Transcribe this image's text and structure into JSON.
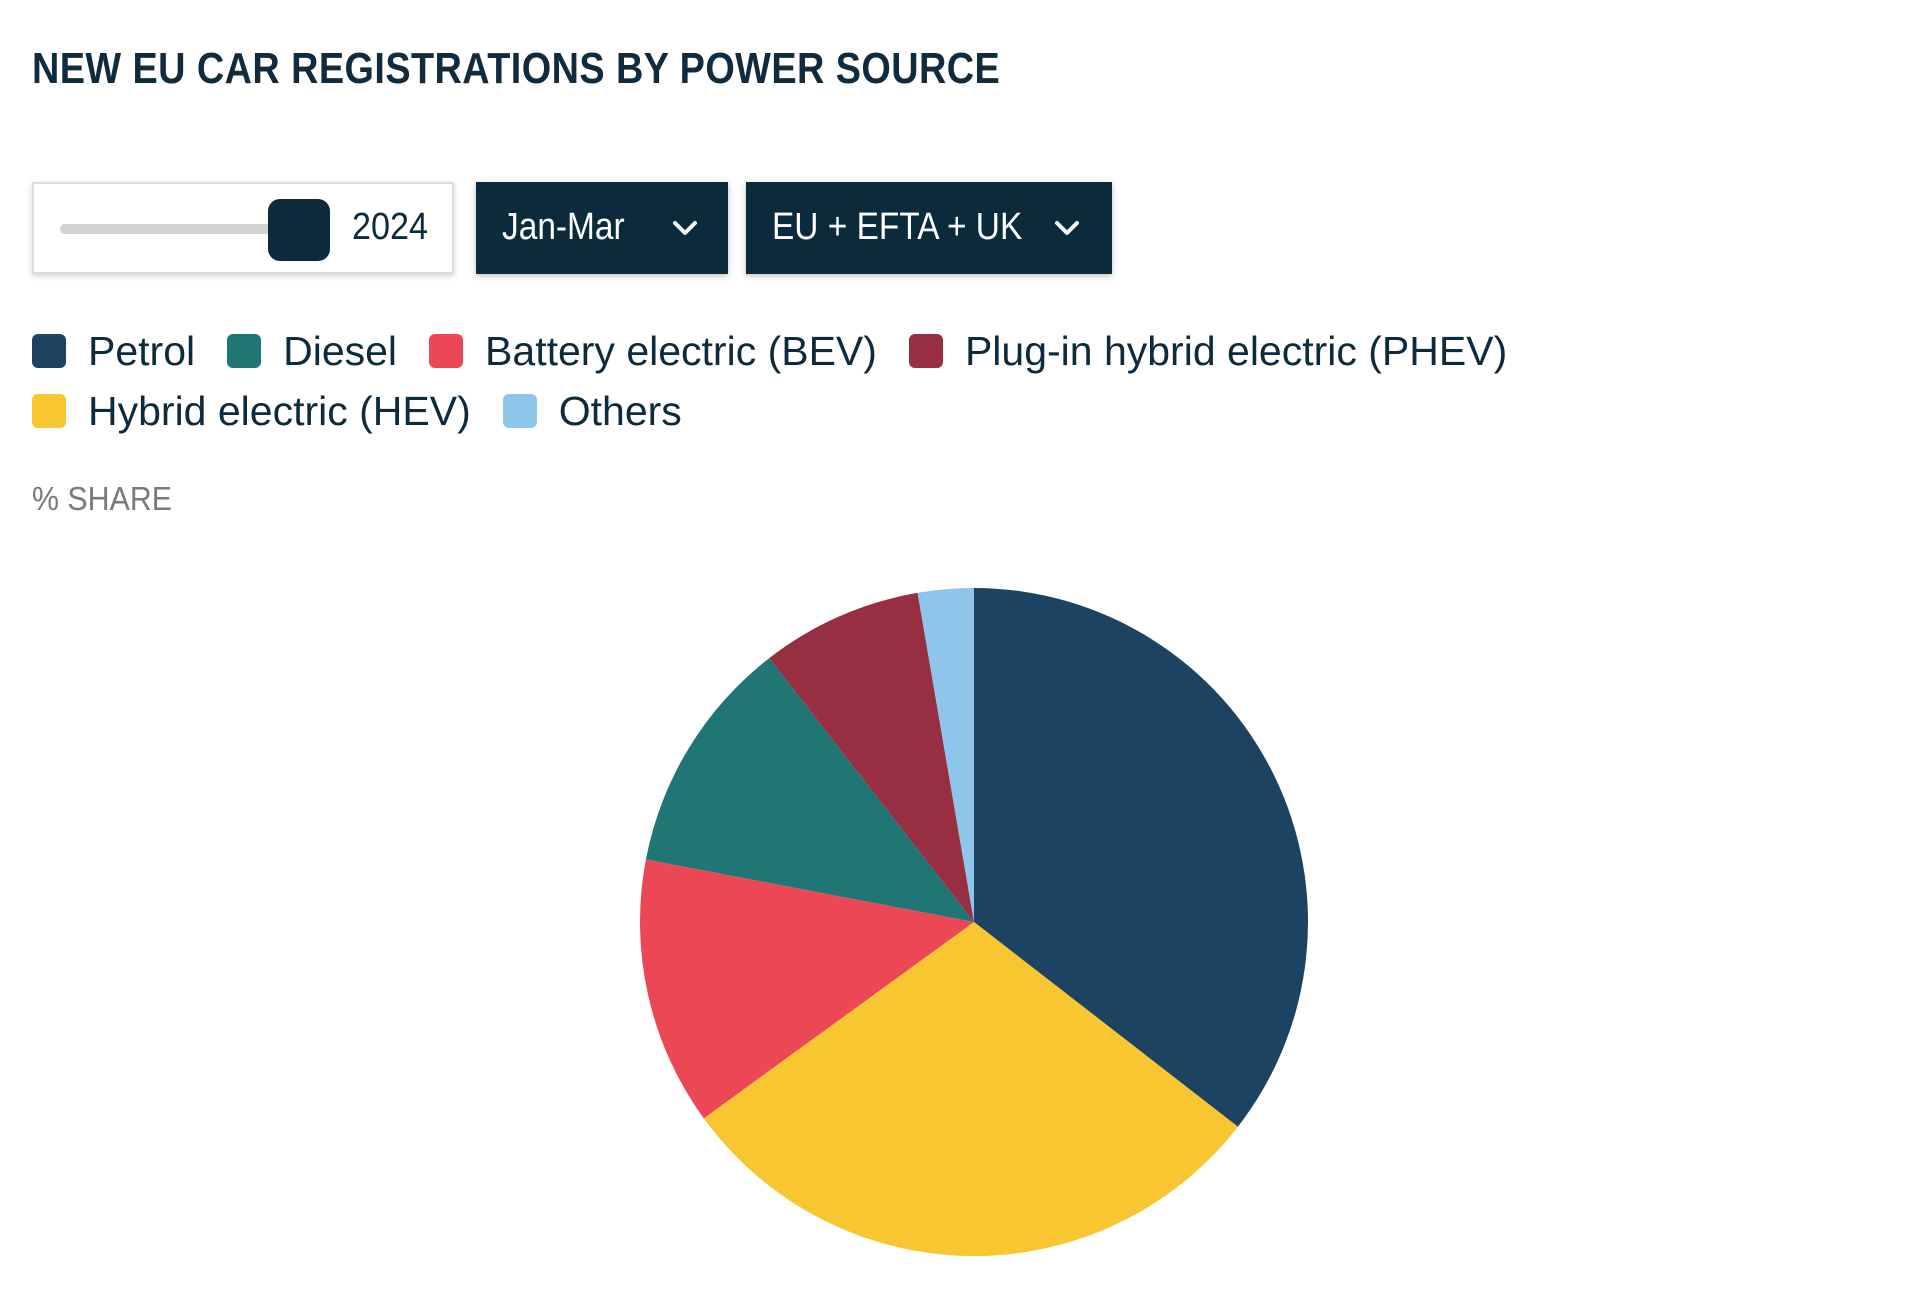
{
  "title": "NEW EU CAR REGISTRATIONS BY POWER SOURCE",
  "controls": {
    "year_slider": {
      "label": "2024"
    },
    "period_dropdown": {
      "label": "Jan-Mar"
    },
    "region_dropdown": {
      "label": "EU + EFTA + UK"
    }
  },
  "axis_unit": "% SHARE",
  "chart_data": {
    "type": "pie",
    "title": "NEW EU CAR REGISTRATIONS BY POWER SOURCE",
    "unit": "% SHARE",
    "start_angle": "12 o'clock",
    "direction": "clockwise",
    "legend_placement": "top",
    "series": [
      {
        "name": "Petrol",
        "value": 35.5,
        "color": "#1d4362"
      },
      {
        "name": "Hybrid electric (HEV)",
        "value": 29.5,
        "color": "#f8c630"
      },
      {
        "name": "Battery electric (BEV)",
        "value": 13.0,
        "color": "#ec4755"
      },
      {
        "name": "Diesel",
        "value": 11.5,
        "color": "#1f7674"
      },
      {
        "name": "Plug-in hybrid electric (PHEV)",
        "value": 7.8,
        "color": "#972e42"
      },
      {
        "name": "Others",
        "value": 2.7,
        "color": "#8ec5ea"
      }
    ]
  },
  "legend": [
    {
      "label": "Petrol",
      "color": "#1d4362"
    },
    {
      "label": "Diesel",
      "color": "#1f7674"
    },
    {
      "label": "Battery electric (BEV)",
      "color": "#ec4755"
    },
    {
      "label": "Plug-in hybrid electric (PHEV)",
      "color": "#972e42"
    },
    {
      "label": "Hybrid electric (HEV)",
      "color": "#f8c630"
    },
    {
      "label": "Others",
      "color": "#8ec5ea"
    }
  ],
  "colors": {
    "title_text": "#0f2b3d",
    "dropdown_bg": "#0b2a3b",
    "slider_track": "#d2d2d2",
    "slider_thumb": "#0d2b3c"
  },
  "icons": {
    "dropdown_chevron": "chevron-down-icon",
    "legend_marker": "rounded-square-swatch"
  }
}
